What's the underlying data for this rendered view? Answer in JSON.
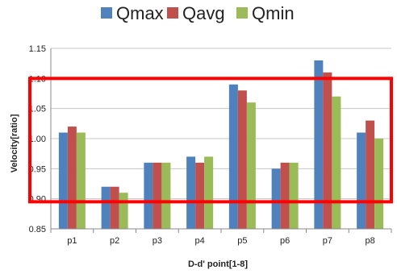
{
  "chart_data": {
    "type": "bar",
    "categories": [
      "p1",
      "p2",
      "p3",
      "p4",
      "p5",
      "p6",
      "p7",
      "p8"
    ],
    "series": [
      {
        "name": "Qmax",
        "color": "#4f81bd",
        "values": [
          1.01,
          0.92,
          0.96,
          0.97,
          1.09,
          0.95,
          1.13,
          1.01
        ]
      },
      {
        "name": "Qavg",
        "color": "#c0504d",
        "values": [
          1.02,
          0.92,
          0.96,
          0.96,
          1.08,
          0.96,
          1.11,
          1.03
        ]
      },
      {
        "name": "Qmin",
        "color": "#9bbb59",
        "values": [
          1.01,
          0.91,
          0.96,
          0.97,
          1.06,
          0.96,
          1.07,
          1.0
        ]
      }
    ],
    "xlabel": "D-d' point[1-8]",
    "ylabel": "Velocity[ratio]",
    "ylim": [
      0.85,
      1.15
    ],
    "yticks": [
      "0.85",
      "0.90",
      "0.95",
      "1.00",
      "1.05",
      "1.10",
      "1.15"
    ],
    "grid": true,
    "legend": "top-center",
    "annotation": {
      "shape": "rectangle",
      "color": "#ff0000",
      "y_range": [
        0.895,
        1.1
      ]
    }
  }
}
